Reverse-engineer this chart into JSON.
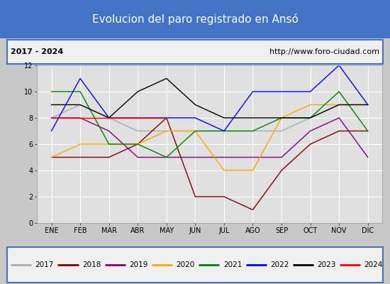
{
  "title": "Evolucion del paro registrado en Ansó",
  "subtitle_left": "2017 - 2024",
  "subtitle_right": "http://www.foro-ciudad.com",
  "months": [
    "ENE",
    "FEB",
    "MAR",
    "ABR",
    "MAY",
    "JUN",
    "JUL",
    "AGO",
    "SEP",
    "OCT",
    "NOV",
    "DIC"
  ],
  "ylim": [
    0,
    12
  ],
  "yticks": [
    0,
    2,
    4,
    6,
    8,
    10,
    12
  ],
  "series": {
    "2017": {
      "color": "#aaaaaa",
      "data": [
        8,
        9,
        8,
        7,
        7,
        7,
        7,
        7,
        7,
        8,
        9,
        9
      ]
    },
    "2018": {
      "color": "#800000",
      "data": [
        5,
        5,
        5,
        6,
        8,
        2,
        2,
        1,
        4,
        6,
        7,
        7
      ]
    },
    "2019": {
      "color": "#800080",
      "data": [
        8,
        8,
        7,
        5,
        5,
        5,
        5,
        5,
        5,
        7,
        8,
        5
      ]
    },
    "2020": {
      "color": "#ffa500",
      "data": [
        5,
        6,
        6,
        6,
        7,
        7,
        4,
        4,
        8,
        9,
        9,
        9
      ]
    },
    "2021": {
      "color": "#008000",
      "data": [
        10,
        10,
        6,
        6,
        5,
        7,
        7,
        7,
        8,
        8,
        10,
        7
      ]
    },
    "2022": {
      "color": "#0000ff",
      "data": [
        7,
        11,
        8,
        8,
        8,
        8,
        7,
        10,
        10,
        10,
        12,
        9
      ]
    },
    "2023": {
      "color": "#000000",
      "data": [
        9,
        9,
        8,
        10,
        11,
        9,
        8,
        8,
        8,
        8,
        9,
        9
      ]
    },
    "2024": {
      "color": "#ff0000",
      "data": [
        8,
        8,
        8,
        8,
        8,
        null,
        null,
        null,
        null,
        null,
        null,
        null
      ]
    }
  },
  "background_color": "#c8c8c8",
  "plot_bg_color": "#e0e0e0",
  "title_bg_color": "#4472c4",
  "title_text_color": "#ffffff",
  "header_bg_color": "#f0f0f0",
  "legend_bg_color": "#f0f0f0",
  "border_color": "#4472c4",
  "title_fontsize": 11,
  "header_fontsize": 8,
  "tick_fontsize": 7,
  "legend_fontsize": 7.5
}
